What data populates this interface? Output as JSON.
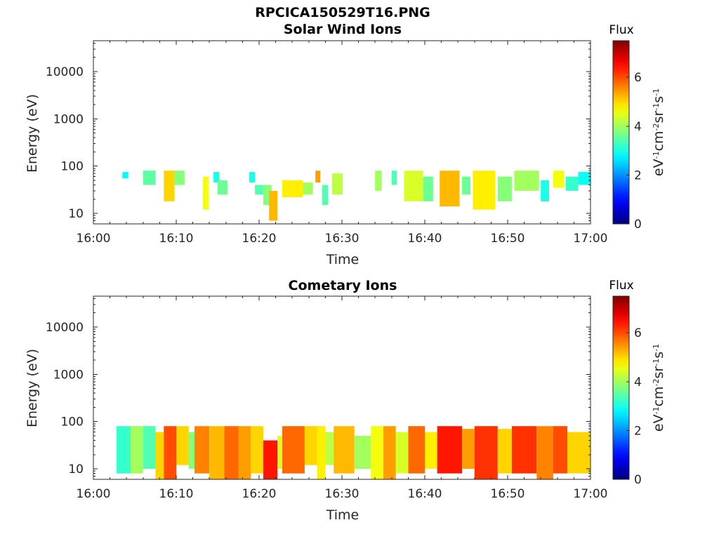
{
  "figure": {
    "title": "RPCICA150529T16.PNG"
  },
  "chart_data": [
    {
      "type": "heatmap",
      "title": "Solar Wind Ions",
      "xlabel": "Time",
      "ylabel": "Energy (eV)",
      "x_ticks": [
        "16:00",
        "16:10",
        "16:20",
        "16:30",
        "16:40",
        "16:50",
        "17:00"
      ],
      "x_range_minutes": [
        0,
        60
      ],
      "y_ticks": [
        10,
        100,
        1000,
        10000
      ],
      "ylim": [
        6,
        45000
      ],
      "y_scale": "log",
      "colorbar": {
        "label": "Flux",
        "units": "eV-1cm-2sr-1s-1",
        "range": [
          0,
          7.5
        ],
        "ticks": [
          0,
          2,
          4,
          6
        ]
      },
      "blocks": [
        {
          "t": [
            3.5,
            4.2
          ],
          "e": [
            55,
            75
          ],
          "v": 2.8
        },
        {
          "t": [
            6.0,
            7.5
          ],
          "e": [
            40,
            80
          ],
          "v": 3.5
        },
        {
          "t": [
            8.5,
            9.8
          ],
          "e": [
            18,
            80
          ],
          "v": 5.0
        },
        {
          "t": [
            9.8,
            11.0
          ],
          "e": [
            40,
            80
          ],
          "v": 3.8
        },
        {
          "t": [
            13.2,
            13.9
          ],
          "e": [
            12,
            60
          ],
          "v": 4.6
        },
        {
          "t": [
            14.5,
            15.2
          ],
          "e": [
            45,
            75
          ],
          "v": 3.0
        },
        {
          "t": [
            15.0,
            16.2
          ],
          "e": [
            25,
            50
          ],
          "v": 3.6
        },
        {
          "t": [
            18.8,
            19.5
          ],
          "e": [
            45,
            75
          ],
          "v": 3.0
        },
        {
          "t": [
            19.5,
            20.5
          ],
          "e": [
            25,
            40
          ],
          "v": 3.4
        },
        {
          "t": [
            20.5,
            21.5
          ],
          "e": [
            15,
            40
          ],
          "v": 3.8
        },
        {
          "t": [
            21.2,
            22.2
          ],
          "e": [
            7,
            30
          ],
          "v": 5.2
        },
        {
          "t": [
            22.8,
            25.3
          ],
          "e": [
            22,
            50
          ],
          "v": 4.8
        },
        {
          "t": [
            25.3,
            26.5
          ],
          "e": [
            25,
            45
          ],
          "v": 4.0
        },
        {
          "t": [
            26.8,
            27.4
          ],
          "e": [
            45,
            80
          ],
          "v": 5.4
        },
        {
          "t": [
            27.6,
            28.3
          ],
          "e": [
            15,
            40
          ],
          "v": 3.4
        },
        {
          "t": [
            28.8,
            30.1
          ],
          "e": [
            25,
            70
          ],
          "v": 4.2
        },
        {
          "t": [
            34.0,
            34.8
          ],
          "e": [
            30,
            80
          ],
          "v": 4.0
        },
        {
          "t": [
            36.0,
            36.6
          ],
          "e": [
            40,
            80
          ],
          "v": 3.4
        },
        {
          "t": [
            37.5,
            39.8
          ],
          "e": [
            18,
            80
          ],
          "v": 4.4
        },
        {
          "t": [
            39.8,
            41.0
          ],
          "e": [
            18,
            60
          ],
          "v": 3.6
        },
        {
          "t": [
            41.8,
            44.2
          ],
          "e": [
            14,
            80
          ],
          "v": 5.2
        },
        {
          "t": [
            44.5,
            45.5
          ],
          "e": [
            25,
            60
          ],
          "v": 3.6
        },
        {
          "t": [
            45.8,
            48.5
          ],
          "e": [
            12,
            80
          ],
          "v": 4.8
        },
        {
          "t": [
            48.8,
            50.5
          ],
          "e": [
            18,
            60
          ],
          "v": 3.8
        },
        {
          "t": [
            50.8,
            53.8
          ],
          "e": [
            30,
            80
          ],
          "v": 4.0
        },
        {
          "t": [
            54.0,
            55.0
          ],
          "e": [
            18,
            50
          ],
          "v": 3.0
        },
        {
          "t": [
            55.5,
            56.8
          ],
          "e": [
            35,
            80
          ],
          "v": 4.6
        },
        {
          "t": [
            57.0,
            58.5
          ],
          "e": [
            30,
            60
          ],
          "v": 3.2
        },
        {
          "t": [
            58.5,
            60.0
          ],
          "e": [
            40,
            75
          ],
          "v": 2.9
        }
      ]
    },
    {
      "type": "heatmap",
      "title": "Cometary Ions",
      "xlabel": "Time",
      "ylabel": "Energy (eV)",
      "x_ticks": [
        "16:00",
        "16:10",
        "16:20",
        "16:30",
        "16:40",
        "16:50",
        "17:00"
      ],
      "x_range_minutes": [
        0,
        60
      ],
      "y_ticks": [
        10,
        100,
        1000,
        10000
      ],
      "ylim": [
        6,
        45000
      ],
      "y_scale": "log",
      "colorbar": {
        "label": "Flux",
        "units": "eV-1cm-2sr-1s-1",
        "range": [
          0,
          7.5
        ],
        "ticks": [
          0,
          2,
          4,
          6
        ]
      },
      "blocks": [
        {
          "t": [
            2.8,
            4.5
          ],
          "e": [
            8,
            80
          ],
          "v": 3.2
        },
        {
          "t": [
            4.5,
            6.0
          ],
          "e": [
            8,
            80
          ],
          "v": 4.0
        },
        {
          "t": [
            6.0,
            7.5
          ],
          "e": [
            10,
            80
          ],
          "v": 3.4
        },
        {
          "t": [
            7.5,
            8.5
          ],
          "e": [
            6,
            60
          ],
          "v": 5.0
        },
        {
          "t": [
            8.5,
            10.0
          ],
          "e": [
            6,
            80
          ],
          "v": 6.0
        },
        {
          "t": [
            10.0,
            11.5
          ],
          "e": [
            12,
            80
          ],
          "v": 5.0
        },
        {
          "t": [
            11.5,
            12.2
          ],
          "e": [
            10,
            60
          ],
          "v": 3.8
        },
        {
          "t": [
            12.2,
            14.0
          ],
          "e": [
            8,
            80
          ],
          "v": 5.6
        },
        {
          "t": [
            14.0,
            15.8
          ],
          "e": [
            6,
            80
          ],
          "v": 5.2
        },
        {
          "t": [
            15.8,
            17.5
          ],
          "e": [
            6,
            80
          ],
          "v": 5.8
        },
        {
          "t": [
            17.5,
            19.0
          ],
          "e": [
            6,
            80
          ],
          "v": 5.4
        },
        {
          "t": [
            19.0,
            20.5
          ],
          "e": [
            8,
            80
          ],
          "v": 5.0
        },
        {
          "t": [
            20.5,
            22.2
          ],
          "e": [
            6,
            40
          ],
          "v": 6.4
        },
        {
          "t": [
            22.2,
            22.8
          ],
          "e": [
            10,
            50
          ],
          "v": 4.4
        },
        {
          "t": [
            22.8,
            25.5
          ],
          "e": [
            8,
            80
          ],
          "v": 5.8
        },
        {
          "t": [
            25.5,
            27.0
          ],
          "e": [
            12,
            80
          ],
          "v": 5.0
        },
        {
          "t": [
            27.0,
            28.0
          ],
          "e": [
            6,
            80
          ],
          "v": 4.8
        },
        {
          "t": [
            28.0,
            29.0
          ],
          "e": [
            12,
            60
          ],
          "v": 4.2
        },
        {
          "t": [
            29.0,
            31.5
          ],
          "e": [
            8,
            80
          ],
          "v": 5.2
        },
        {
          "t": [
            31.5,
            33.5
          ],
          "e": [
            10,
            50
          ],
          "v": 4.0
        },
        {
          "t": [
            33.5,
            35.0
          ],
          "e": [
            6,
            80
          ],
          "v": 4.6
        },
        {
          "t": [
            35.0,
            36.5
          ],
          "e": [
            6,
            80
          ],
          "v": 5.4
        },
        {
          "t": [
            36.5,
            38.0
          ],
          "e": [
            8,
            60
          ],
          "v": 4.4
        },
        {
          "t": [
            38.0,
            40.0
          ],
          "e": [
            8,
            80
          ],
          "v": 5.8
        },
        {
          "t": [
            40.0,
            41.5
          ],
          "e": [
            10,
            60
          ],
          "v": 4.8
        },
        {
          "t": [
            41.5,
            44.5
          ],
          "e": [
            8,
            80
          ],
          "v": 6.4
        },
        {
          "t": [
            44.5,
            46.0
          ],
          "e": [
            10,
            70
          ],
          "v": 5.4
        },
        {
          "t": [
            46.0,
            48.8
          ],
          "e": [
            6,
            80
          ],
          "v": 6.2
        },
        {
          "t": [
            48.8,
            50.5
          ],
          "e": [
            8,
            70
          ],
          "v": 5.0
        },
        {
          "t": [
            50.5,
            53.5
          ],
          "e": [
            8,
            80
          ],
          "v": 6.2
        },
        {
          "t": [
            53.5,
            55.5
          ],
          "e": [
            6,
            80
          ],
          "v": 5.6
        },
        {
          "t": [
            55.5,
            57.2
          ],
          "e": [
            8,
            80
          ],
          "v": 6.0
        },
        {
          "t": [
            57.2,
            60.0
          ],
          "e": [
            8,
            60
          ],
          "v": 5.0
        }
      ]
    }
  ]
}
